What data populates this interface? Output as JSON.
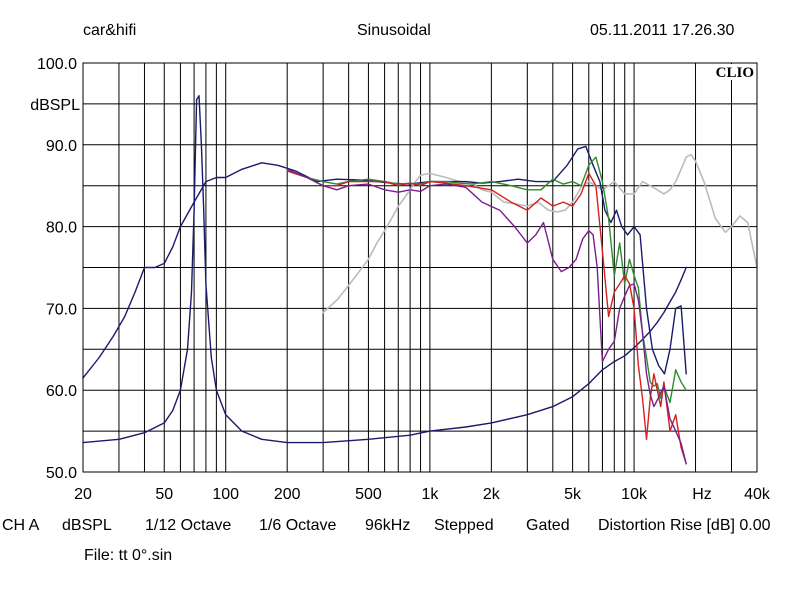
{
  "header": {
    "left": "car&hifi",
    "center": "Sinusoidal",
    "right": "05.11.2011 17.26.30"
  },
  "brand": "CLIO",
  "status_bar": {
    "channel": "CH A",
    "unit": "dBSPL",
    "smoothing": "1/12 Octave",
    "resolution": "1/6 Octave",
    "sample_rate": "96kHz",
    "mode": "Stepped",
    "gating": "Gated",
    "distortion_rise": "Distortion Rise [dB] 0.00"
  },
  "file_label": "File: tt 0°.sin",
  "chart_data": {
    "type": "line",
    "title": "",
    "xlabel": "Hz",
    "ylabel": "dBSPL",
    "x_scale": "log",
    "xlim": [
      20,
      40000
    ],
    "ylim": [
      50,
      100
    ],
    "grid": true,
    "x_ticks": [
      20,
      50,
      100,
      200,
      500,
      1000,
      2000,
      5000,
      10000,
      40000
    ],
    "x_tick_labels": [
      "20",
      "50",
      "100",
      "200",
      "500",
      "1k",
      "2k",
      "5k",
      "10k",
      "40k"
    ],
    "y_ticks": [
      50,
      60,
      70,
      80,
      90,
      100
    ],
    "y_tick_labels": [
      "50.0",
      "60.0",
      "70.0",
      "80.0",
      "90.0",
      "100.0"
    ],
    "series": [
      {
        "color": "#1a1a6e",
        "x": [
          20,
          24,
          28,
          32,
          36,
          40,
          45,
          50,
          55,
          60,
          70,
          80,
          90,
          100,
          120,
          150,
          180,
          220,
          280,
          350,
          450,
          550,
          650,
          800,
          1000,
          1200,
          1500,
          1800,
          2200,
          2700,
          3300,
          4000,
          4700,
          5300,
          5800,
          6300,
          6800,
          7200,
          7700,
          8200,
          8700,
          9300,
          10000,
          10700,
          11500,
          12300,
          13200,
          14100,
          15000,
          16000,
          17000,
          18000
        ],
        "y": [
          61.5,
          64,
          66.5,
          69,
          72,
          75,
          75,
          75.5,
          77.5,
          80,
          83,
          85.5,
          86,
          86,
          87,
          87.8,
          87.5,
          86.8,
          85.5,
          85.8,
          85.7,
          85.5,
          85.3,
          85.2,
          85.5,
          85.5,
          85.5,
          85.3,
          85.5,
          85.8,
          85.5,
          85.5,
          87.5,
          89.5,
          89.8,
          87.5,
          85.5,
          82,
          80.5,
          82,
          80,
          79,
          80,
          79,
          70,
          65,
          63,
          62,
          65,
          70,
          70.3,
          62
        ]
      },
      {
        "color": "#1a1a6e",
        "x": [
          20,
          30,
          40,
          50,
          55,
          60,
          65,
          68,
          70,
          72,
          74,
          76,
          78,
          80,
          85,
          90,
          100,
          120,
          150,
          200,
          300,
          500,
          800,
          1000,
          1500,
          2000,
          3000,
          4000,
          5000,
          6000,
          7000,
          8000,
          9000,
          10000,
          11000,
          12000,
          13000,
          14000,
          15000,
          16000,
          17000,
          18000
        ],
        "y": [
          53.6,
          54,
          54.8,
          56,
          57.5,
          60,
          65,
          72,
          82,
          95.5,
          96,
          90,
          82,
          73,
          64,
          60,
          57,
          55,
          54,
          53.6,
          53.6,
          54,
          54.5,
          55,
          55.5,
          56,
          57,
          58,
          59.2,
          60.8,
          62.5,
          63.5,
          64.2,
          65.2,
          66.2,
          67.2,
          68.3,
          69.5,
          70.8,
          72,
          73.5,
          75
        ]
      },
      {
        "color": "#2e8b2e",
        "x": [
          200,
          250,
          300,
          350,
          400,
          500,
          600,
          700,
          800,
          900,
          1000,
          1200,
          1400,
          1600,
          2000,
          2500,
          3000,
          3500,
          4000,
          4500,
          5000,
          5500,
          6000,
          6500,
          7000,
          7500,
          8000,
          8500,
          9000,
          9500,
          10000,
          10500,
          11000,
          11500,
          12000,
          12500,
          13000,
          13500,
          14000,
          15000,
          16000,
          17000,
          18000
        ],
        "y": [
          86.8,
          86,
          85.5,
          85.2,
          85.5,
          85.8,
          85.5,
          85.2,
          85.3,
          85.2,
          85.5,
          85.5,
          85.3,
          85.2,
          85.5,
          85,
          84.5,
          84.5,
          85.8,
          85.2,
          85.5,
          85,
          87.5,
          88.5,
          85.5,
          81,
          74,
          78,
          73,
          76,
          74,
          72.5,
          67,
          64,
          61,
          60.5,
          60.8,
          59,
          60.5,
          58.5,
          62.5,
          61,
          60
        ]
      },
      {
        "color": "#d62020",
        "x": [
          200,
          250,
          300,
          350,
          400,
          500,
          600,
          700,
          800,
          900,
          1000,
          1200,
          1500,
          2000,
          2500,
          3000,
          3500,
          4000,
          4500,
          5000,
          5500,
          6000,
          6500,
          7000,
          7500,
          8000,
          8500,
          9000,
          9500,
          10000,
          10500,
          11000,
          11500,
          12000,
          12500,
          13000,
          13500,
          14000,
          15000,
          16000,
          17000,
          18000
        ],
        "y": [
          86.8,
          86,
          85,
          85,
          85.5,
          85.5,
          85.5,
          85,
          85.3,
          85,
          85.5,
          85.3,
          85,
          84.5,
          83,
          82,
          83.5,
          82.5,
          83,
          82.5,
          84,
          86.5,
          85,
          77,
          69,
          72,
          73,
          74,
          73,
          70,
          63,
          59,
          54,
          59,
          62,
          60,
          58,
          61,
          55,
          57,
          53,
          51
        ]
      },
      {
        "color": "#7a1f8c",
        "x": [
          200,
          250,
          300,
          350,
          400,
          500,
          600,
          700,
          800,
          900,
          1000,
          1200,
          1500,
          1800,
          2200,
          2600,
          3000,
          3300,
          3600,
          4000,
          4400,
          4800,
          5200,
          5600,
          6000,
          6300,
          6600,
          7000,
          7500,
          8000,
          8500,
          9000,
          9500,
          10000,
          10500,
          11000,
          11500,
          12000,
          12500,
          13000,
          14000,
          15000,
          16000,
          17000,
          18000
        ],
        "y": [
          87,
          86,
          85,
          84.5,
          85,
          85.2,
          84.5,
          84.2,
          84.5,
          84.3,
          85,
          85.2,
          84.8,
          83,
          82,
          80,
          78,
          79,
          80.5,
          76,
          74.5,
          75,
          76,
          78.5,
          79.5,
          79,
          75,
          63.5,
          65,
          66,
          70,
          71.5,
          72.8,
          73,
          71,
          67,
          62,
          59.5,
          58,
          58.8,
          60.5,
          56.5,
          55,
          53.5,
          51
        ]
      },
      {
        "color": "#bbbbbb",
        "x": [
          300,
          350,
          400,
          450,
          500,
          550,
          600,
          650,
          700,
          750,
          800,
          850,
          900,
          1000,
          1200,
          1400,
          1600,
          1800,
          2000,
          2300,
          2600,
          3000,
          3400,
          3800,
          4200,
          4600,
          5000,
          5500,
          6000,
          7000,
          8000,
          9000,
          10000,
          11000,
          12000,
          13000,
          14000,
          15000,
          16000,
          17000,
          18000,
          19000,
          20000,
          22000,
          25000,
          28000,
          30000,
          33000,
          36000,
          40000
        ],
        "y": [
          69.5,
          71,
          72.8,
          74.5,
          76,
          78,
          79.5,
          81,
          82.5,
          83.5,
          84.5,
          85.5,
          86.3,
          86.5,
          86,
          85.5,
          85.3,
          84.5,
          84.2,
          83,
          82.8,
          82.5,
          83,
          82,
          81.8,
          82,
          83,
          84.8,
          85.5,
          84.5,
          85.5,
          84,
          84,
          85.5,
          85,
          84.5,
          84,
          84.5,
          85.5,
          87,
          88.5,
          88.8,
          88,
          85.5,
          81,
          79.3,
          80,
          81.3,
          80.5,
          75
        ]
      }
    ]
  }
}
